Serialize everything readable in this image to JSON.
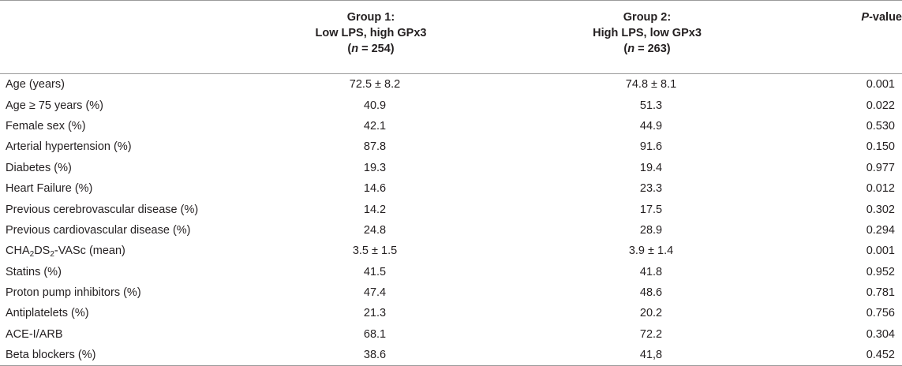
{
  "table": {
    "headers": {
      "variable": "",
      "group1": {
        "line1": "Group 1:",
        "line2": "Low LPS, high GPx3",
        "n_label": "n",
        "n_rest": " = 254)"
      },
      "group2": {
        "line1": "Group 2:",
        "line2": "High LPS, low GPx3",
        "n_label": "n",
        "n_rest": " = 263)"
      },
      "pvalue": {
        "p": "P",
        "rest": "-value"
      }
    },
    "rows": [
      {
        "variable": "Age (years)",
        "group1": "72.5 ± 8.2",
        "group2": "74.8 ± 8.1",
        "p": "0.001"
      },
      {
        "variable": "Age ≥ 75 years (%)",
        "group1": "40.9",
        "group2": "51.3",
        "p": "0.022"
      },
      {
        "variable": "Female sex (%)",
        "group1": "42.1",
        "group2": "44.9",
        "p": "0.530"
      },
      {
        "variable": "Arterial hypertension (%)",
        "group1": "87.8",
        "group2": "91.6",
        "p": "0.150"
      },
      {
        "variable": "Diabetes (%)",
        "group1": "19.3",
        "group2": "19.4",
        "p": "0.977"
      },
      {
        "variable": "Heart Failure (%)",
        "group1": "14.6",
        "group2": "23.3",
        "p": "0.012"
      },
      {
        "variable": "Previous cerebrovascular disease (%)",
        "group1": "14.2",
        "group2": "17.5",
        "p": "0.302"
      },
      {
        "variable": "Previous cardiovascular disease (%)",
        "group1": "24.8",
        "group2": "28.9",
        "p": "0.294"
      },
      {
        "variable_parts": [
          "CHA",
          "2",
          "DS",
          "2",
          "-VASc (mean)"
        ],
        "group1": "3.5 ± 1.5",
        "group2": "3.9 ± 1.4",
        "p": "0.001"
      },
      {
        "variable": "Statins (%)",
        "group1": "41.5",
        "group2": "41.8",
        "p": "0.952"
      },
      {
        "variable": "Proton pump inhibitors (%)",
        "group1": "47.4",
        "group2": "48.6",
        "p": "0.781"
      },
      {
        "variable": "Antiplatelets (%)",
        "group1": "21.3",
        "group2": "20.2",
        "p": "0.756"
      },
      {
        "variable": "ACE-I/ARB",
        "group1": "68.1",
        "group2": "72.2",
        "p": "0.304"
      },
      {
        "variable": "Beta blockers (%)",
        "group1": "38.6",
        "group2": "41,8",
        "p": "0.452"
      }
    ]
  }
}
